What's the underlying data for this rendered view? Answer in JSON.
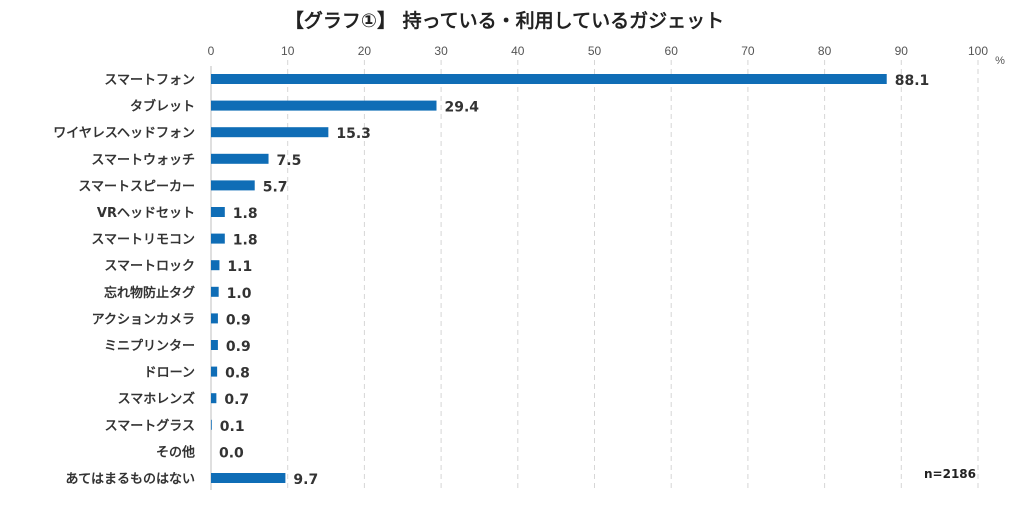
{
  "chart_data": {
    "type": "bar",
    "orientation": "horizontal",
    "title": "【グラフ①】 持っている・利用しているガジェット",
    "unit": "%",
    "sample_note": "n=2186",
    "xlim": [
      0,
      100
    ],
    "xticks": [
      0,
      10,
      20,
      30,
      40,
      50,
      60,
      70,
      80,
      90,
      100
    ],
    "grid": true,
    "bar_color": "#0f6db6",
    "categories": [
      "スマートフォン",
      "タブレット",
      "ワイヤレスヘッドフォン",
      "スマートウォッチ",
      "スマートスピーカー",
      "VRヘッドセット",
      "スマートリモコン",
      "スマートロック",
      "忘れ物防止タグ",
      "アクションカメラ",
      "ミニプリンター",
      "ドローン",
      "スマホレンズ",
      "スマートグラス",
      "その他",
      "あてはまるものはない"
    ],
    "values": [
      88.1,
      29.4,
      15.3,
      7.5,
      5.7,
      1.8,
      1.8,
      1.1,
      1.0,
      0.9,
      0.9,
      0.8,
      0.7,
      0.1,
      0.0,
      9.7
    ],
    "value_labels": [
      "88.1",
      "29.4",
      "15.3",
      "7.5",
      "5.7",
      "1.8",
      "1.8",
      "1.1",
      "1.0",
      "0.9",
      "0.9",
      "0.8",
      "0.7",
      "0.1",
      "0.0",
      "9.7"
    ]
  }
}
